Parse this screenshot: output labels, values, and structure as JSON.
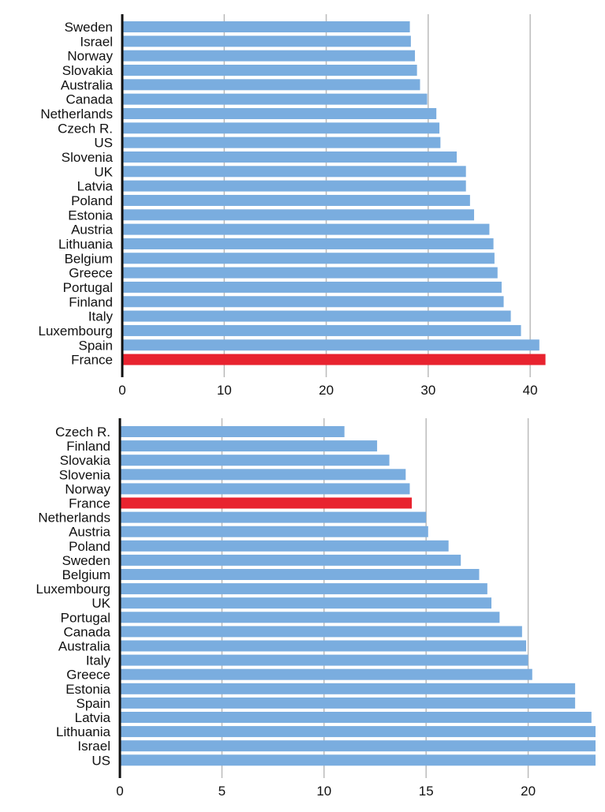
{
  "colors": {
    "bar": "#7aaddf",
    "highlight": "#e8232f",
    "grid": "#bbbbbb",
    "axis": "#111111",
    "background": "#ffffff"
  },
  "chart_data": [
    {
      "type": "bar",
      "orientation": "horizontal",
      "title": "",
      "xlabel": "",
      "ylabel": "",
      "xlim": [
        0,
        42
      ],
      "ticks": [
        0,
        10,
        20,
        30,
        40
      ],
      "tick_labels": [
        "0",
        "10",
        "20",
        "30",
        "40"
      ],
      "grid": true,
      "highlight": "France",
      "categories": [
        "Sweden",
        "Israel",
        "Norway",
        "Slovakia",
        "Australia",
        "Canada",
        "Netherlands",
        "Czech R.",
        "US",
        "Slovenia",
        "UK",
        "Latvia",
        "Poland",
        "Estonia",
        "Austria",
        "Lithuania",
        "Belgium",
        "Greece",
        "Portugal",
        "Finland",
        "Italy",
        "Luxembourg",
        "Spain",
        "France"
      ],
      "values": [
        28.2,
        28.3,
        28.7,
        28.9,
        29.2,
        29.9,
        30.8,
        31.1,
        31.2,
        32.8,
        33.7,
        33.7,
        34.1,
        34.5,
        36.0,
        36.4,
        36.5,
        36.8,
        37.2,
        37.4,
        38.1,
        39.1,
        40.9,
        41.5
      ]
    },
    {
      "type": "bar",
      "orientation": "horizontal",
      "title": "",
      "xlabel": "",
      "ylabel": "",
      "xlim": [
        0,
        23.3
      ],
      "ticks": [
        0,
        5,
        10,
        15,
        20
      ],
      "tick_labels": [
        "0",
        "5",
        "10",
        "15",
        "20"
      ],
      "grid": true,
      "highlight": "France",
      "categories": [
        "Czech R.",
        "Finland",
        "Slovakia",
        "Slovenia",
        "Norway",
        "France",
        "Netherlands",
        "Austria",
        "Poland",
        "Sweden",
        "Belgium",
        "Luxembourg",
        "UK",
        "Portugal",
        "Canada",
        "Australia",
        "Italy",
        "Greece",
        "Estonia",
        "Spain",
        "Latvia",
        "Lithuania",
        "Israel",
        "US"
      ],
      "values": [
        11.0,
        12.6,
        13.2,
        14.0,
        14.2,
        14.3,
        15.0,
        15.1,
        16.1,
        16.7,
        17.6,
        18.0,
        18.2,
        18.6,
        19.7,
        19.9,
        20.0,
        20.2,
        22.3,
        22.3,
        23.1,
        23.3,
        23.3,
        23.3
      ]
    }
  ]
}
